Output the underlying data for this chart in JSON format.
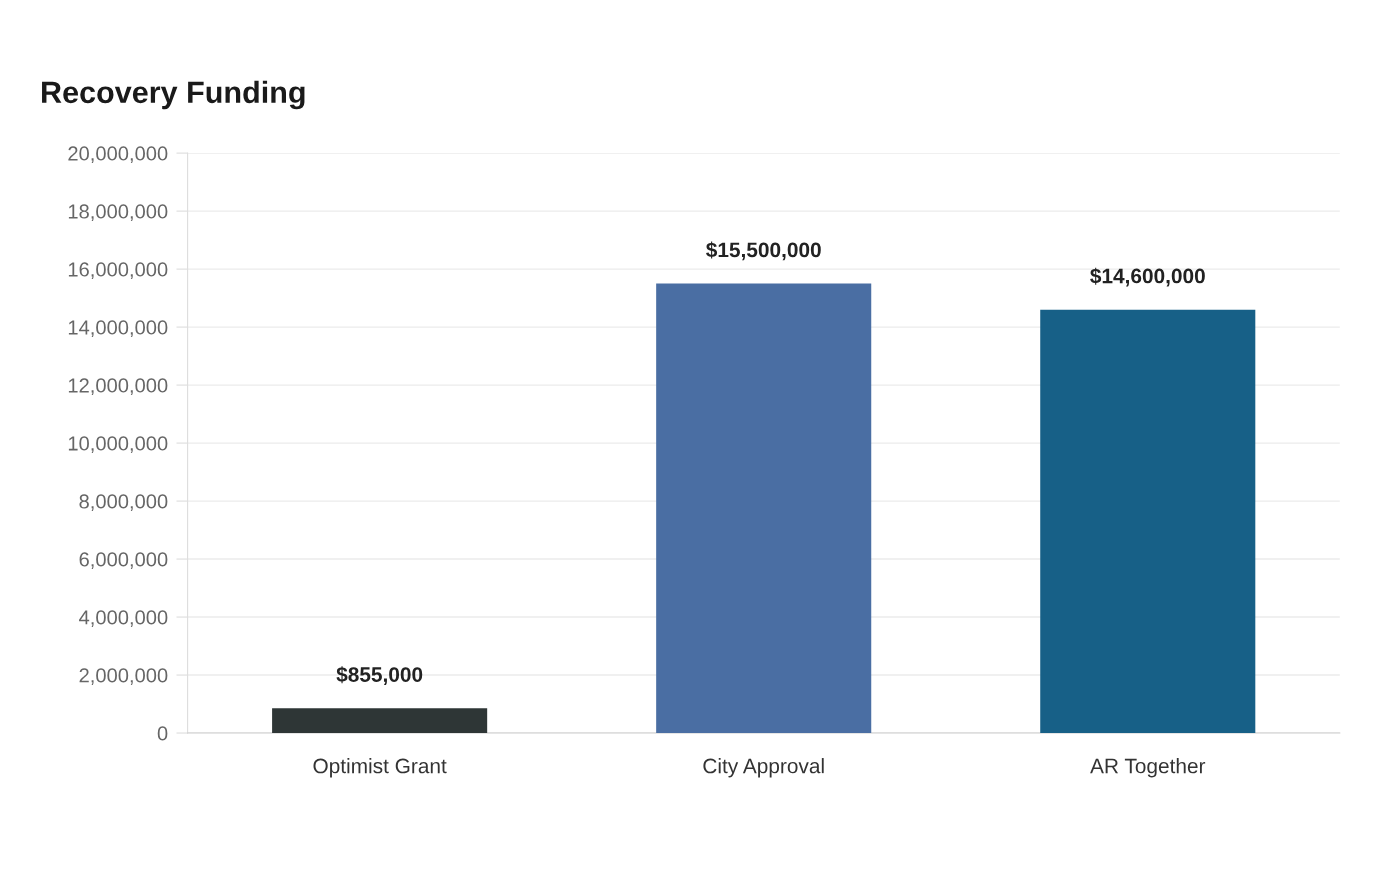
{
  "chart_data": {
    "type": "bar",
    "title": "Recovery Funding",
    "categories": [
      "Optimist Grant",
      "City Approval",
      "AR Together"
    ],
    "values": [
      855000,
      15500000,
      14600000
    ],
    "colors": [
      "#2e3636",
      "#4a6ea3",
      "#176087"
    ],
    "value_labels": [
      "$855,000",
      "$15,500,000",
      "$14,600,000"
    ],
    "ylim": [
      0,
      20000000
    ],
    "yticks": [
      {
        "value": 0,
        "label": "0"
      },
      {
        "value": 2000000,
        "label": "2,000,000"
      },
      {
        "value": 4000000,
        "label": "4,000,000"
      },
      {
        "value": 6000000,
        "label": "6,000,000"
      },
      {
        "value": 8000000,
        "label": "8,000,000"
      },
      {
        "value": 10000000,
        "label": "10,000,000"
      },
      {
        "value": 12000000,
        "label": "12,000,000"
      },
      {
        "value": 14000000,
        "label": "14,000,000"
      },
      {
        "value": 16000000,
        "label": "16,000,000"
      },
      {
        "value": 18000000,
        "label": "18,000,000"
      },
      {
        "value": 20000000,
        "label": "20,000,000"
      }
    ],
    "grid": "y"
  }
}
